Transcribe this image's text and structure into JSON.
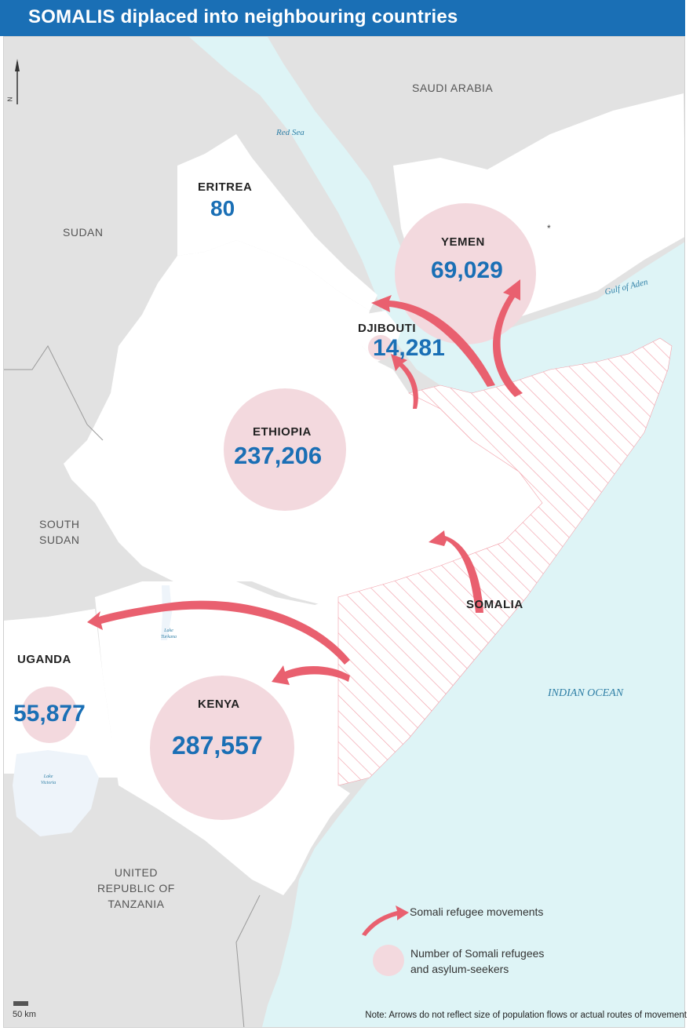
{
  "title": "SOMALIS diplaced into neighbouring countries",
  "north_label": "N",
  "scale_label": "50 km",
  "countries": {
    "saudi_arabia": "SAUDI ARABIA",
    "sudan": "SUDAN",
    "south_sudan": "SOUTH\nSUDAN",
    "tanzania": "UNITED\nREPUBLIC OF\nTANZANIA",
    "somalia": "SOMALIA"
  },
  "water": {
    "red_sea": "Red Sea",
    "gulf_of_aden": "Gulf of Aden",
    "indian_ocean": "INDIAN OCEAN",
    "lake_turkana": "Lake\nTurkana",
    "lake_victoria": "Lake\nVictoria"
  },
  "refugees": [
    {
      "country": "ERITREA",
      "value": "80"
    },
    {
      "country": "YEMEN",
      "value": "69,029"
    },
    {
      "country": "DJIBOUTI",
      "value": "14,281"
    },
    {
      "country": "ETHIOPIA",
      "value": "237,206"
    },
    {
      "country": "UGANDA",
      "value": "55,877"
    },
    {
      "country": "KENYA",
      "value": "287,557"
    }
  ],
  "legend": {
    "arrow_label": "Somali refugee movements",
    "circle_label": "Number of Somali refugees\nand asylum-seekers"
  },
  "note": "Note: Arrows do not reflect size of population flows or actual routes of movement",
  "colors": {
    "header": "#1a6fb5",
    "sea": "#def4f6",
    "neighbour_land": "#e2e2e2",
    "host_land": "#ffffff",
    "circle": "#f3d9de",
    "arrow": "#e9606f",
    "hatch": "#f2a0aa",
    "number": "#1a6fb5"
  }
}
